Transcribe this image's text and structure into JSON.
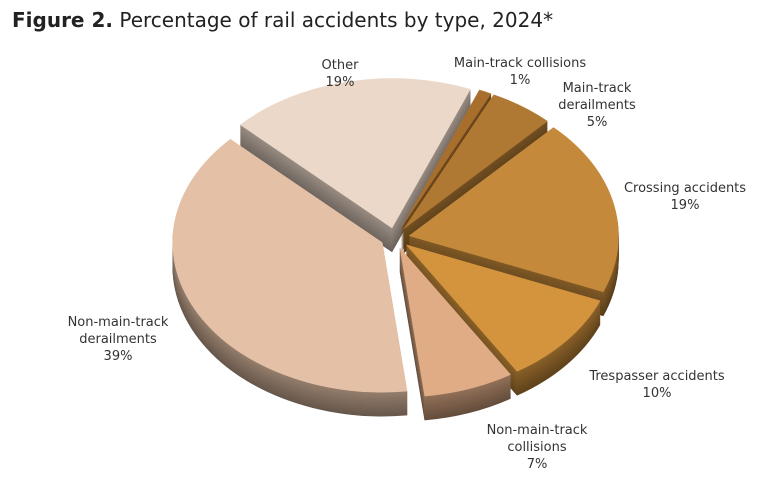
{
  "chart_data": {
    "type": "pie",
    "title_label": "Figure 2.",
    "title": "Percentage of rail accidents by type, 2024*",
    "categories": [
      "Main-track collisions",
      "Main-track derailments",
      "Crossing accidents",
      "Trespasser accidents",
      "Non-main-track collisions",
      "Non-main-track derailments",
      "Other"
    ],
    "values": [
      1,
      5,
      19,
      10,
      7,
      39,
      19
    ],
    "value_labels": [
      "1%",
      "5%",
      "19%",
      "10%",
      "7%",
      "39%",
      "19%"
    ],
    "colors": [
      "#a86f2c",
      "#b07933",
      "#c4893a",
      "#d4943e",
      "#dfac86",
      "#e4c1a6",
      "#ebd8c9"
    ]
  }
}
